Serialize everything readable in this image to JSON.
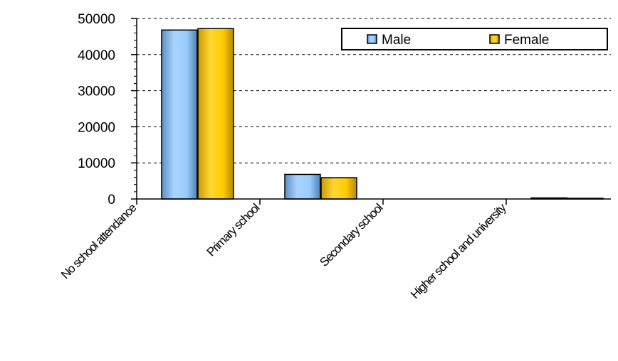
{
  "chart_data": {
    "type": "bar",
    "title": "",
    "xlabel": "",
    "ylabel": "",
    "categories": [
      "No school attendance",
      "Primary school",
      "Secondary school",
      "Higher school and university"
    ],
    "series": [
      {
        "name": "Male",
        "color": "#99ccff",
        "values": [
          46800,
          6800,
          0,
          300
        ]
      },
      {
        "name": "Female",
        "color": "#ffcc00",
        "values": [
          47200,
          5900,
          0,
          200
        ]
      }
    ],
    "ylim": [
      0,
      50000
    ],
    "yticks": [
      0,
      10000,
      20000,
      30000,
      40000,
      50000
    ],
    "ytick_labels": [
      "0",
      "10000",
      "20000",
      "30000",
      "40000",
      "50000"
    ],
    "grid": "horizontal dashed",
    "legend": "top-right"
  }
}
